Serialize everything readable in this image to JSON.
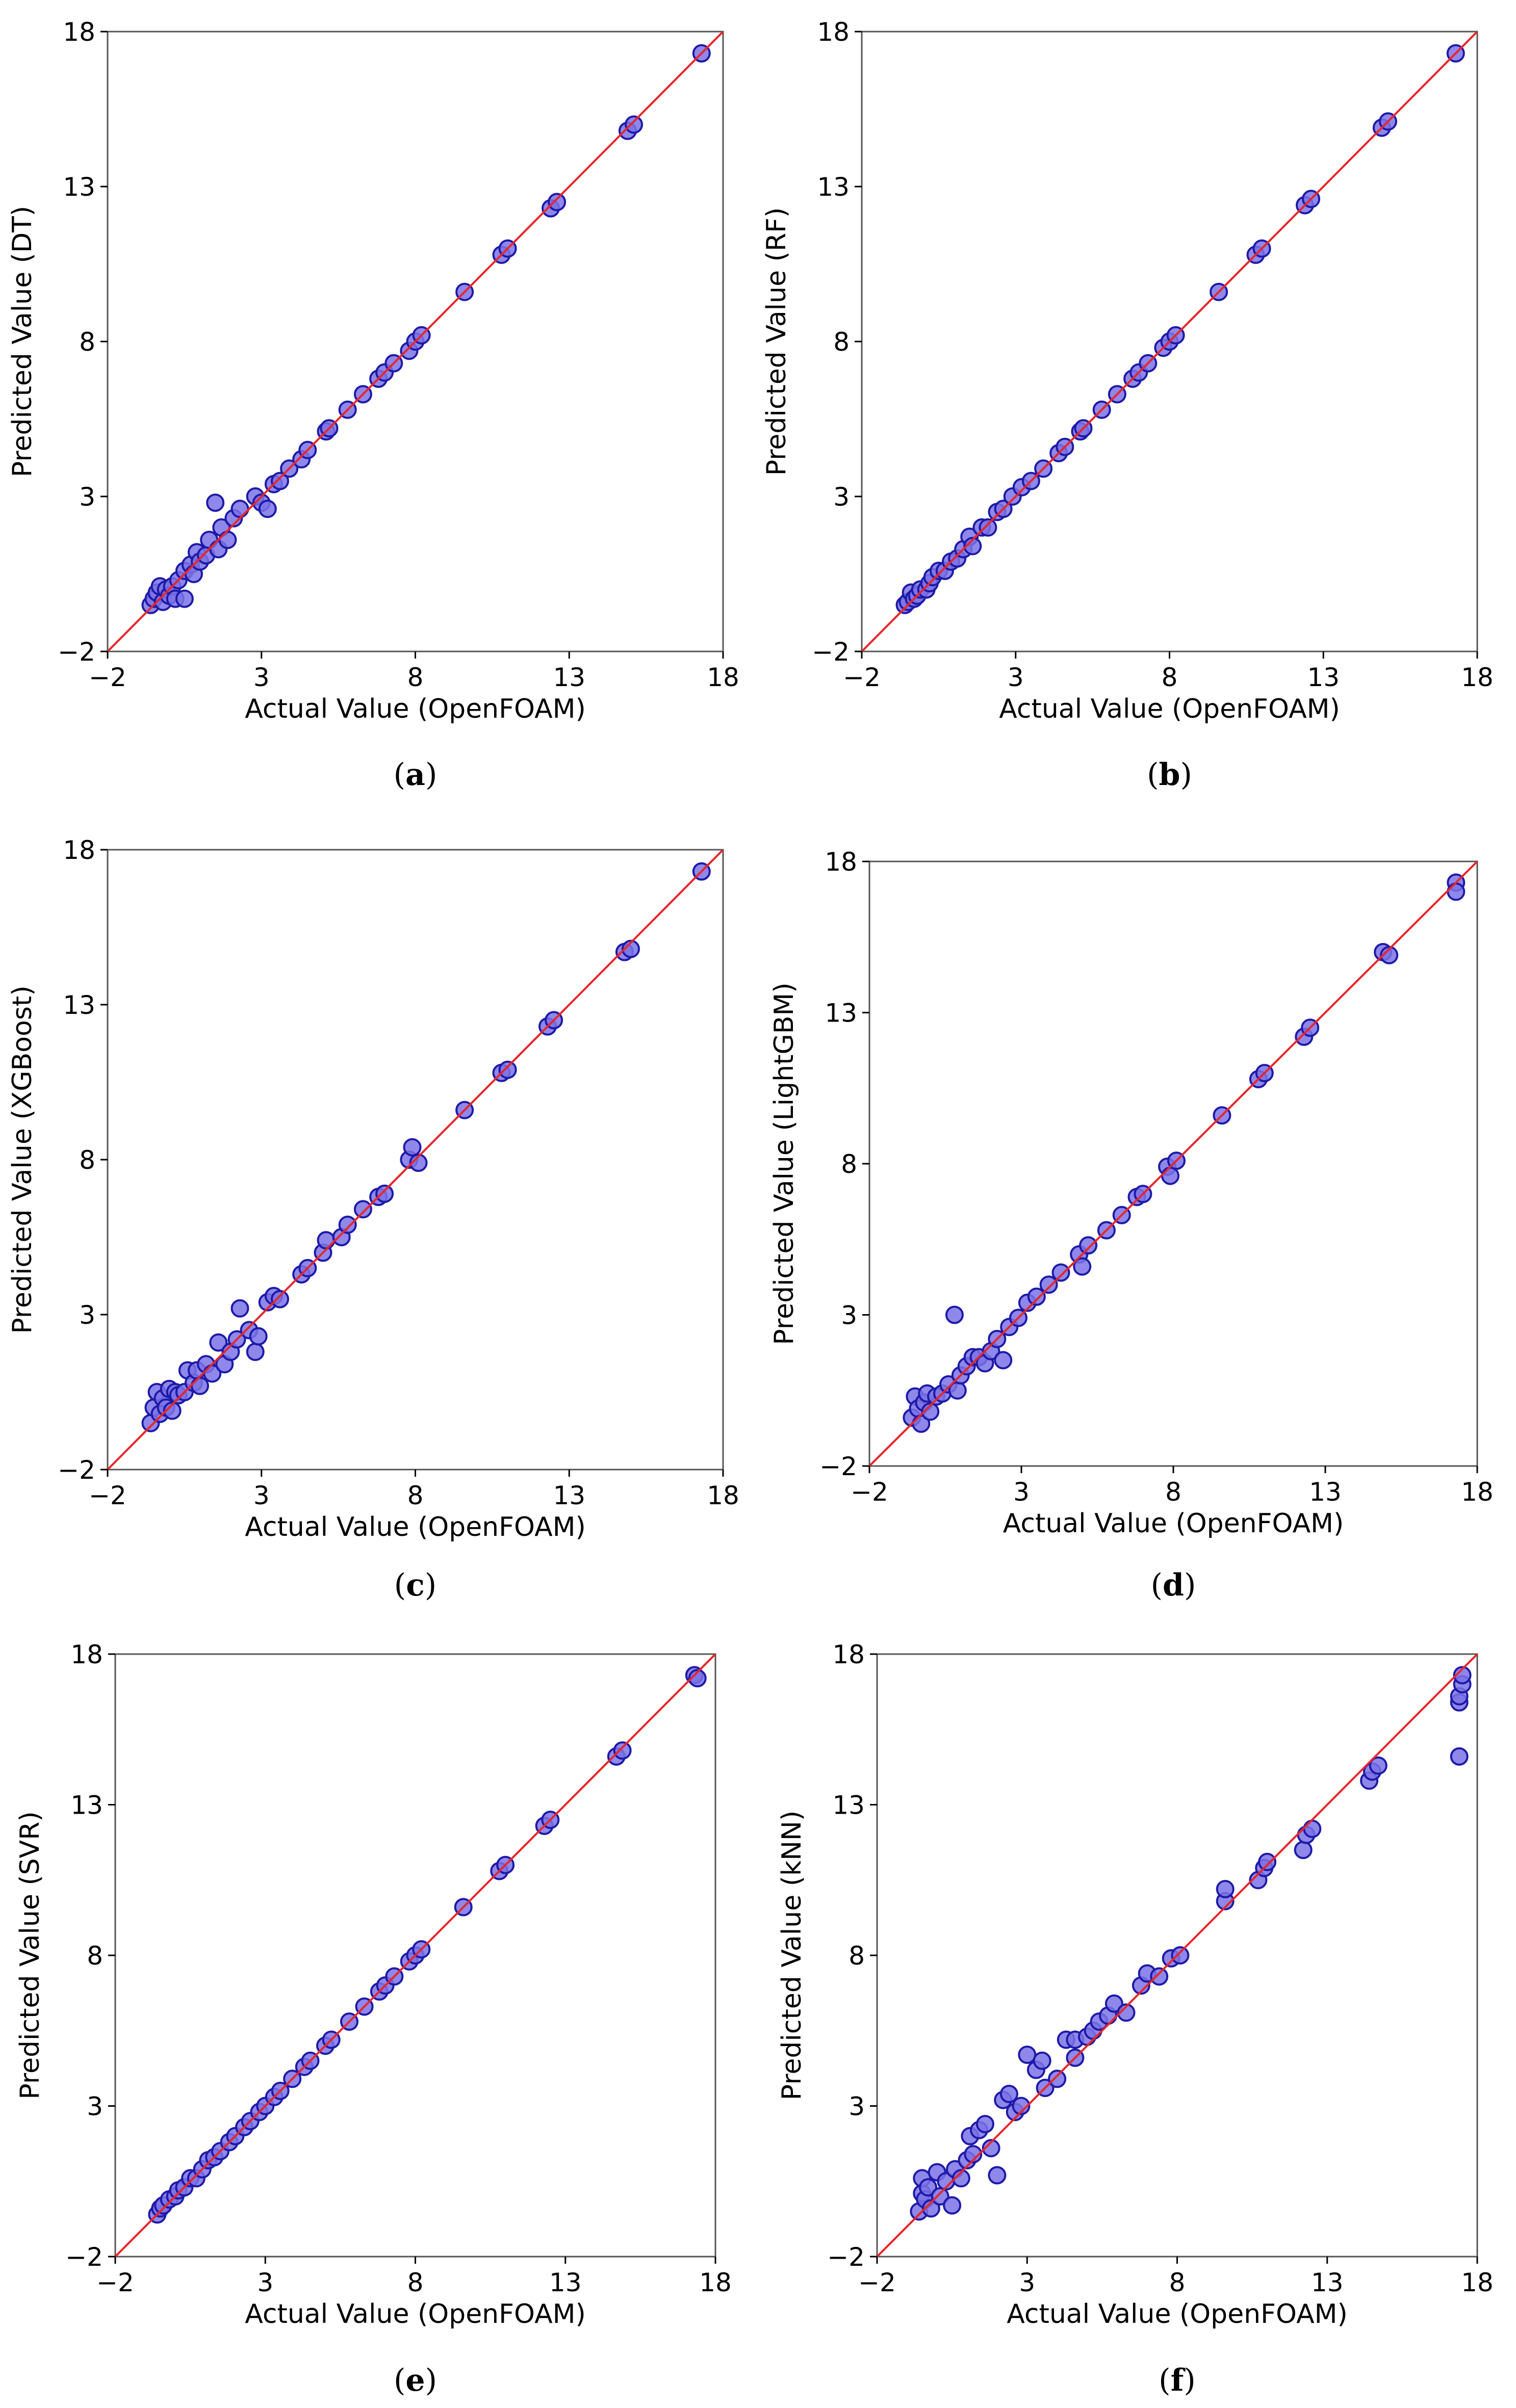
{
  "figure": {
    "panels_count": 6
  },
  "chart_data": [
    {
      "id": "a",
      "type": "scatter",
      "caption_letter": "a",
      "xlabel": "Actual Value (OpenFOAM)",
      "ylabel": "Predicted Value (DT)",
      "xlim": [
        -2,
        18
      ],
      "ylim": [
        -2,
        18
      ],
      "xticks": [
        -2,
        3,
        8,
        13,
        18
      ],
      "yticks": [
        -2,
        3,
        8,
        13,
        18
      ],
      "reference_line": "y = x",
      "points": [
        [
          -0.6,
          -0.5
        ],
        [
          -0.5,
          -0.3
        ],
        [
          -0.4,
          -0.1
        ],
        [
          -0.3,
          0.1
        ],
        [
          -0.2,
          -0.4
        ],
        [
          -0.1,
          0.0
        ],
        [
          0.0,
          -0.2
        ],
        [
          0.1,
          0.1
        ],
        [
          0.2,
          -0.3
        ],
        [
          0.3,
          0.3
        ],
        [
          0.5,
          -0.3
        ],
        [
          0.5,
          0.6
        ],
        [
          0.7,
          0.8
        ],
        [
          0.8,
          0.5
        ],
        [
          0.9,
          1.2
        ],
        [
          1.0,
          0.9
        ],
        [
          1.2,
          1.1
        ],
        [
          1.3,
          1.6
        ],
        [
          1.5,
          2.8
        ],
        [
          1.6,
          1.3
        ],
        [
          1.7,
          2.0
        ],
        [
          1.9,
          1.6
        ],
        [
          2.1,
          2.3
        ],
        [
          2.3,
          2.6
        ],
        [
          2.8,
          3.0
        ],
        [
          3.0,
          2.8
        ],
        [
          3.2,
          2.6
        ],
        [
          3.4,
          3.4
        ],
        [
          3.6,
          3.5
        ],
        [
          3.9,
          3.9
        ],
        [
          4.3,
          4.2
        ],
        [
          4.5,
          4.5
        ],
        [
          5.1,
          5.1
        ],
        [
          5.2,
          5.2
        ],
        [
          5.8,
          5.8
        ],
        [
          6.3,
          6.3
        ],
        [
          6.8,
          6.8
        ],
        [
          7.0,
          7.0
        ],
        [
          7.3,
          7.3
        ],
        [
          7.8,
          7.7
        ],
        [
          8.0,
          8.0
        ],
        [
          8.2,
          8.2
        ],
        [
          9.6,
          9.6
        ],
        [
          10.8,
          10.8
        ],
        [
          11.0,
          11.0
        ],
        [
          12.4,
          12.3
        ],
        [
          12.6,
          12.5
        ],
        [
          14.9,
          14.8
        ],
        [
          15.1,
          15.0
        ],
        [
          17.3,
          17.3
        ]
      ]
    },
    {
      "id": "b",
      "type": "scatter",
      "caption_letter": "b",
      "xlabel": "Actual Value (OpenFOAM)",
      "ylabel": "Predicted Value (RF)",
      "xlim": [
        -2,
        18
      ],
      "ylim": [
        -2,
        18
      ],
      "xticks": [
        -2,
        3,
        8,
        13,
        18
      ],
      "yticks": [
        -2,
        3,
        8,
        13,
        18
      ],
      "reference_line": "y = x",
      "points": [
        [
          -0.6,
          -0.5
        ],
        [
          -0.5,
          -0.4
        ],
        [
          -0.4,
          -0.1
        ],
        [
          -0.3,
          -0.3
        ],
        [
          -0.2,
          -0.2
        ],
        [
          -0.1,
          0.0
        ],
        [
          0.1,
          0.0
        ],
        [
          0.2,
          0.2
        ],
        [
          0.3,
          0.4
        ],
        [
          0.5,
          0.6
        ],
        [
          0.7,
          0.6
        ],
        [
          0.9,
          0.9
        ],
        [
          1.1,
          1.0
        ],
        [
          1.3,
          1.3
        ],
        [
          1.5,
          1.7
        ],
        [
          1.6,
          1.4
        ],
        [
          1.9,
          2.0
        ],
        [
          2.1,
          2.0
        ],
        [
          2.4,
          2.5
        ],
        [
          2.6,
          2.6
        ],
        [
          2.9,
          3.0
        ],
        [
          3.2,
          3.3
        ],
        [
          3.5,
          3.5
        ],
        [
          3.9,
          3.9
        ],
        [
          4.4,
          4.4
        ],
        [
          4.6,
          4.6
        ],
        [
          5.1,
          5.1
        ],
        [
          5.2,
          5.2
        ],
        [
          5.8,
          5.8
        ],
        [
          6.3,
          6.3
        ],
        [
          6.8,
          6.8
        ],
        [
          7.0,
          7.0
        ],
        [
          7.3,
          7.3
        ],
        [
          7.8,
          7.8
        ],
        [
          8.0,
          8.0
        ],
        [
          8.2,
          8.2
        ],
        [
          9.6,
          9.6
        ],
        [
          10.8,
          10.8
        ],
        [
          11.0,
          11.0
        ],
        [
          12.4,
          12.4
        ],
        [
          12.6,
          12.6
        ],
        [
          14.9,
          14.9
        ],
        [
          15.1,
          15.1
        ],
        [
          17.3,
          17.3
        ]
      ]
    },
    {
      "id": "c",
      "type": "scatter",
      "caption_letter": "c",
      "xlabel": "Actual Value (OpenFOAM)",
      "ylabel": "Predicted Value (XGBoost)",
      "xlim": [
        -2,
        18
      ],
      "ylim": [
        -2,
        18
      ],
      "xticks": [
        -2,
        3,
        8,
        13,
        18
      ],
      "yticks": [
        -2,
        3,
        8,
        13,
        18
      ],
      "reference_line": "y = x",
      "points": [
        [
          -0.6,
          -0.5
        ],
        [
          -0.5,
          0.0
        ],
        [
          -0.4,
          0.5
        ],
        [
          -0.3,
          -0.2
        ],
        [
          -0.2,
          0.3
        ],
        [
          -0.1,
          0.0
        ],
        [
          0.0,
          0.6
        ],
        [
          0.1,
          -0.1
        ],
        [
          0.2,
          0.5
        ],
        [
          0.3,
          0.4
        ],
        [
          0.5,
          0.5
        ],
        [
          0.6,
          1.2
        ],
        [
          0.8,
          0.8
        ],
        [
          0.9,
          1.2
        ],
        [
          1.0,
          0.7
        ],
        [
          1.2,
          1.4
        ],
        [
          1.4,
          1.1
        ],
        [
          1.6,
          2.1
        ],
        [
          1.8,
          1.4
        ],
        [
          2.0,
          1.8
        ],
        [
          2.2,
          2.2
        ],
        [
          2.3,
          3.2
        ],
        [
          2.6,
          2.5
        ],
        [
          2.8,
          1.8
        ],
        [
          2.9,
          2.3
        ],
        [
          3.2,
          3.4
        ],
        [
          3.4,
          3.6
        ],
        [
          3.6,
          3.5
        ],
        [
          4.3,
          4.3
        ],
        [
          4.5,
          4.5
        ],
        [
          5.0,
          5.0
        ],
        [
          5.1,
          5.4
        ],
        [
          5.6,
          5.5
        ],
        [
          5.8,
          5.9
        ],
        [
          6.3,
          6.4
        ],
        [
          6.8,
          6.8
        ],
        [
          7.0,
          6.9
        ],
        [
          7.8,
          8.0
        ],
        [
          7.9,
          8.4
        ],
        [
          8.1,
          7.9
        ],
        [
          9.6,
          9.6
        ],
        [
          10.8,
          10.8
        ],
        [
          11.0,
          10.9
        ],
        [
          12.3,
          12.3
        ],
        [
          12.5,
          12.5
        ],
        [
          14.8,
          14.7
        ],
        [
          15.0,
          14.8
        ],
        [
          17.3,
          17.3
        ]
      ]
    },
    {
      "id": "d",
      "type": "scatter",
      "caption_letter": "d",
      "xlabel": "Actual Value (OpenFOAM)",
      "ylabel": "Predicted Value (LightGBM)",
      "xlim": [
        -2,
        18
      ],
      "ylim": [
        -2,
        18
      ],
      "xticks": [
        -2,
        3,
        8,
        13,
        18
      ],
      "yticks": [
        -2,
        3,
        8,
        13,
        18
      ],
      "reference_line": "y = x",
      "points": [
        [
          -0.6,
          -0.4
        ],
        [
          -0.5,
          0.3
        ],
        [
          -0.4,
          -0.1
        ],
        [
          -0.3,
          -0.6
        ],
        [
          -0.2,
          0.1
        ],
        [
          -0.1,
          0.4
        ],
        [
          0.0,
          -0.2
        ],
        [
          0.2,
          0.3
        ],
        [
          0.4,
          0.4
        ],
        [
          0.6,
          0.7
        ],
        [
          0.8,
          3.0
        ],
        [
          0.9,
          0.5
        ],
        [
          1.0,
          1.0
        ],
        [
          1.2,
          1.3
        ],
        [
          1.4,
          1.6
        ],
        [
          1.6,
          1.6
        ],
        [
          1.8,
          1.4
        ],
        [
          2.0,
          1.8
        ],
        [
          2.2,
          2.2
        ],
        [
          2.4,
          1.5
        ],
        [
          2.6,
          2.6
        ],
        [
          2.9,
          2.9
        ],
        [
          3.2,
          3.4
        ],
        [
          3.5,
          3.6
        ],
        [
          3.9,
          4.0
        ],
        [
          4.3,
          4.4
        ],
        [
          4.9,
          5.0
        ],
        [
          5.0,
          4.6
        ],
        [
          5.2,
          5.3
        ],
        [
          5.8,
          5.8
        ],
        [
          6.3,
          6.3
        ],
        [
          6.8,
          6.9
        ],
        [
          7.0,
          7.0
        ],
        [
          7.8,
          7.9
        ],
        [
          7.9,
          7.6
        ],
        [
          8.1,
          8.1
        ],
        [
          9.6,
          9.6
        ],
        [
          10.8,
          10.8
        ],
        [
          11.0,
          11.0
        ],
        [
          12.3,
          12.2
        ],
        [
          12.5,
          12.5
        ],
        [
          14.9,
          15.0
        ],
        [
          15.1,
          14.9
        ],
        [
          17.3,
          17.3
        ],
        [
          17.3,
          17.0
        ]
      ]
    },
    {
      "id": "e",
      "type": "scatter",
      "caption_letter": "e",
      "xlabel": "Actual Value (OpenFOAM)",
      "ylabel": "Predicted Value (SVR)",
      "xlim": [
        -2,
        18
      ],
      "ylim": [
        -2,
        18
      ],
      "xticks": [
        -2,
        3,
        8,
        13,
        18
      ],
      "yticks": [
        -2,
        3,
        8,
        13,
        18
      ],
      "reference_line": "y = x",
      "points": [
        [
          -0.6,
          -0.6
        ],
        [
          -0.5,
          -0.4
        ],
        [
          -0.4,
          -0.3
        ],
        [
          -0.2,
          -0.1
        ],
        [
          0.0,
          0.0
        ],
        [
          0.1,
          0.2
        ],
        [
          0.3,
          0.3
        ],
        [
          0.5,
          0.6
        ],
        [
          0.7,
          0.6
        ],
        [
          0.9,
          0.9
        ],
        [
          1.1,
          1.2
        ],
        [
          1.3,
          1.3
        ],
        [
          1.5,
          1.5
        ],
        [
          1.8,
          1.8
        ],
        [
          2.0,
          2.0
        ],
        [
          2.3,
          2.3
        ],
        [
          2.5,
          2.5
        ],
        [
          2.8,
          2.8
        ],
        [
          3.0,
          3.0
        ],
        [
          3.3,
          3.3
        ],
        [
          3.5,
          3.5
        ],
        [
          3.9,
          3.9
        ],
        [
          4.3,
          4.3
        ],
        [
          4.5,
          4.5
        ],
        [
          5.0,
          5.0
        ],
        [
          5.2,
          5.2
        ],
        [
          5.8,
          5.8
        ],
        [
          6.3,
          6.3
        ],
        [
          6.8,
          6.8
        ],
        [
          7.0,
          7.0
        ],
        [
          7.3,
          7.3
        ],
        [
          7.8,
          7.8
        ],
        [
          8.0,
          8.0
        ],
        [
          8.2,
          8.2
        ],
        [
          9.6,
          9.6
        ],
        [
          10.8,
          10.8
        ],
        [
          11.0,
          11.0
        ],
        [
          12.3,
          12.3
        ],
        [
          12.5,
          12.5
        ],
        [
          14.7,
          14.6
        ],
        [
          14.9,
          14.8
        ],
        [
          17.3,
          17.3
        ],
        [
          17.4,
          17.2
        ]
      ]
    },
    {
      "id": "f",
      "type": "scatter",
      "caption_letter": "f",
      "xlabel": "Actual Value (OpenFOAM)",
      "ylabel": "Predicted Value (kNN)",
      "xlim": [
        -2,
        18
      ],
      "ylim": [
        -2,
        18
      ],
      "xticks": [
        -2,
        3,
        8,
        13,
        18
      ],
      "yticks": [
        -2,
        3,
        8,
        13,
        18
      ],
      "reference_line": "y = x",
      "points": [
        [
          -0.6,
          -0.5
        ],
        [
          -0.5,
          0.1
        ],
        [
          -0.5,
          0.6
        ],
        [
          -0.4,
          -0.1
        ],
        [
          -0.3,
          0.3
        ],
        [
          -0.2,
          -0.4
        ],
        [
          0.0,
          0.8
        ],
        [
          0.1,
          0.0
        ],
        [
          0.3,
          0.5
        ],
        [
          0.5,
          -0.3
        ],
        [
          0.6,
          0.9
        ],
        [
          0.8,
          0.6
        ],
        [
          1.0,
          1.2
        ],
        [
          1.1,
          2.0
        ],
        [
          1.2,
          1.4
        ],
        [
          1.4,
          2.2
        ],
        [
          1.6,
          2.4
        ],
        [
          1.8,
          1.6
        ],
        [
          2.0,
          0.7
        ],
        [
          2.2,
          3.2
        ],
        [
          2.4,
          3.4
        ],
        [
          2.6,
          2.8
        ],
        [
          2.8,
          3.0
        ],
        [
          3.0,
          4.7
        ],
        [
          3.3,
          4.2
        ],
        [
          3.5,
          4.5
        ],
        [
          3.6,
          3.6
        ],
        [
          4.0,
          3.9
        ],
        [
          4.3,
          5.2
        ],
        [
          4.6,
          5.2
        ],
        [
          4.6,
          4.6
        ],
        [
          5.0,
          5.3
        ],
        [
          5.2,
          5.5
        ],
        [
          5.4,
          5.8
        ],
        [
          5.7,
          6.0
        ],
        [
          5.9,
          6.4
        ],
        [
          6.3,
          6.1
        ],
        [
          6.8,
          7.0
        ],
        [
          7.0,
          7.4
        ],
        [
          7.4,
          7.3
        ],
        [
          7.8,
          7.9
        ],
        [
          8.1,
          8.0
        ],
        [
          9.6,
          9.8
        ],
        [
          9.6,
          10.2
        ],
        [
          10.7,
          10.5
        ],
        [
          10.9,
          10.9
        ],
        [
          11.0,
          11.1
        ],
        [
          12.2,
          11.5
        ],
        [
          12.3,
          12.0
        ],
        [
          12.5,
          12.2
        ],
        [
          14.4,
          13.8
        ],
        [
          14.5,
          14.1
        ],
        [
          14.7,
          14.3
        ],
        [
          17.4,
          14.6
        ],
        [
          17.4,
          16.4
        ],
        [
          17.4,
          16.6
        ],
        [
          17.5,
          17.0
        ],
        [
          17.5,
          17.3
        ]
      ]
    }
  ],
  "style": {
    "point_fill": "#7b73e6",
    "point_stroke": "#1d1aa8",
    "line_color": "#e8252a",
    "axis_color": "#555555"
  }
}
